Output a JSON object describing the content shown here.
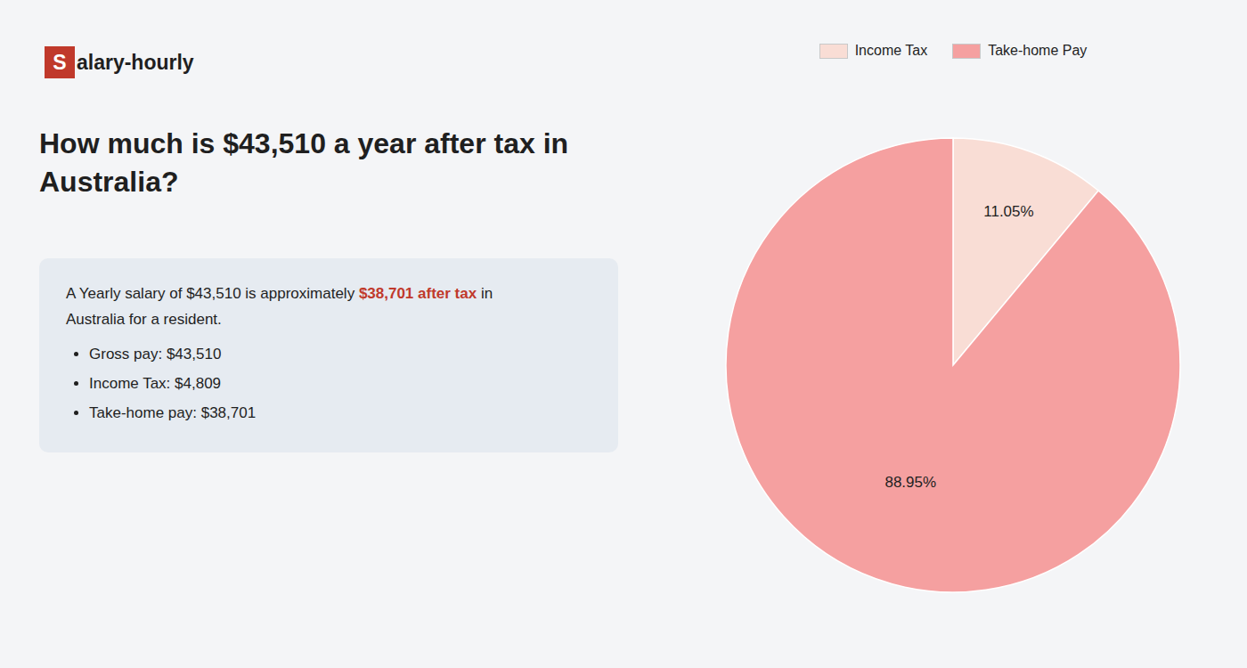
{
  "chart_data": {
    "type": "pie",
    "title": "How much is $43,510 a year after tax in Australia?",
    "categories": [
      "Income Tax",
      "Take-home Pay"
    ],
    "values": [
      11.05,
      88.95
    ],
    "value_labels": [
      "11.05%",
      "88.95%"
    ],
    "colors": [
      "#f9ddd5",
      "#f5a0a0"
    ],
    "data_labels": true,
    "legend": "top",
    "annotations": [
      "S",
      "alary-hourly",
      "A Yearly salary of $43,510 is approximately",
      "$38,701 after tax",
      "in",
      "Australia for a resident.",
      "Gross pay: $43,510",
      "Income Tax: $4,809",
      "Take-home pay: $38,701"
    ]
  }
}
